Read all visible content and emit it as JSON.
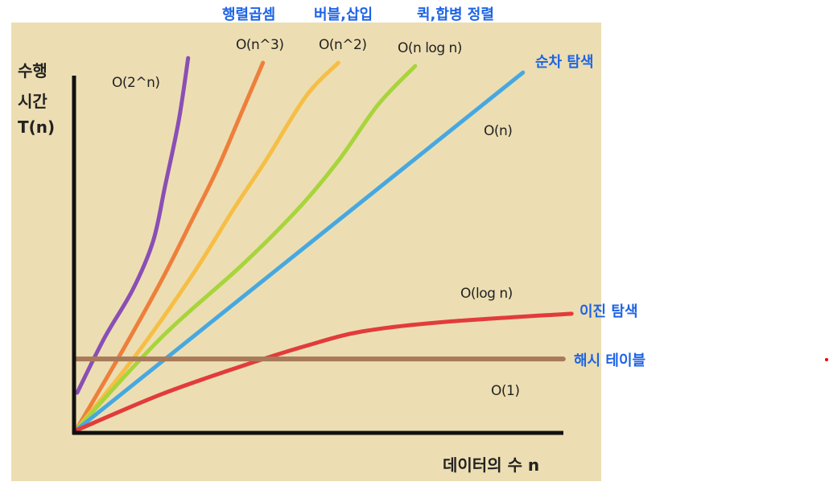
{
  "chart_data": {
    "type": "line",
    "title": "",
    "xlabel": "데이터의 수 n",
    "ylabel_lines": [
      "수행",
      "시간",
      "T(n)"
    ],
    "xlim": [
      0,
      10
    ],
    "ylim": [
      0,
      10
    ],
    "grid": false,
    "series": [
      {
        "name": "O(2^n)",
        "color": "#8A4FB5",
        "points": [
          [
            0.03,
            1.09
          ],
          [
            0.55,
            2.6
          ],
          [
            1.09,
            3.93
          ],
          [
            1.48,
            5.27
          ],
          [
            1.71,
            6.8
          ],
          [
            1.97,
            8.6
          ],
          [
            2.15,
            10.33
          ]
        ]
      },
      {
        "name": "O(n^3)",
        "color": "#EE7F3B",
        "points": [
          [
            0,
            0.04
          ],
          [
            0.86,
            2.16
          ],
          [
            1.63,
            4.16
          ],
          [
            2.25,
            5.93
          ],
          [
            2.71,
            7.27
          ],
          [
            3.17,
            8.82
          ],
          [
            3.58,
            10.2
          ]
        ]
      },
      {
        "name": "O(n^2)",
        "color": "#F6BE45",
        "points": [
          [
            0,
            0.04
          ],
          [
            1.17,
            2.16
          ],
          [
            2.25,
            4.38
          ],
          [
            3.02,
            6.16
          ],
          [
            3.63,
            7.49
          ],
          [
            4.4,
            9.27
          ],
          [
            5.02,
            10.2
          ]
        ]
      },
      {
        "name": "O(n log n)",
        "color": "#A8D43C",
        "points": [
          [
            0,
            0.04
          ],
          [
            1.63,
            2.6
          ],
          [
            3.17,
            4.6
          ],
          [
            4.25,
            6.16
          ],
          [
            5.02,
            7.49
          ],
          [
            5.78,
            9.04
          ],
          [
            6.49,
            10.11
          ]
        ]
      },
      {
        "name": "O(n)",
        "color": "#46A8E0",
        "points": [
          [
            0,
            0.04
          ],
          [
            8.55,
            9.93
          ]
        ]
      },
      {
        "name": "O(log n)",
        "color": "#E23B3B",
        "points": [
          [
            0,
            0.04
          ],
          [
            1.63,
            1.04
          ],
          [
            3.17,
            1.82
          ],
          [
            4.4,
            2.38
          ],
          [
            5.48,
            2.78
          ],
          [
            7.02,
            3.04
          ],
          [
            9.48,
            3.27
          ]
        ]
      },
      {
        "name": "O(1)",
        "color": "#A87A5A",
        "points": [
          [
            0.02,
            2.02
          ],
          [
            9.32,
            2.02
          ]
        ]
      }
    ],
    "annotations": {
      "o2n": "O(2^n)",
      "on3": "O(n^3)",
      "on2": "O(n^2)",
      "onlogn": "O(n log n)",
      "on": "O(n)",
      "ologn": "O(log n)",
      "o1": "O(1)"
    },
    "examples": {
      "matrix": "행렬곱셈",
      "bubble": "버블,삽입",
      "quick": "퀵,합병 정렬",
      "sequential": "순차 탐색",
      "binary": "이진 탐색",
      "hash": "해시 테이블"
    }
  }
}
